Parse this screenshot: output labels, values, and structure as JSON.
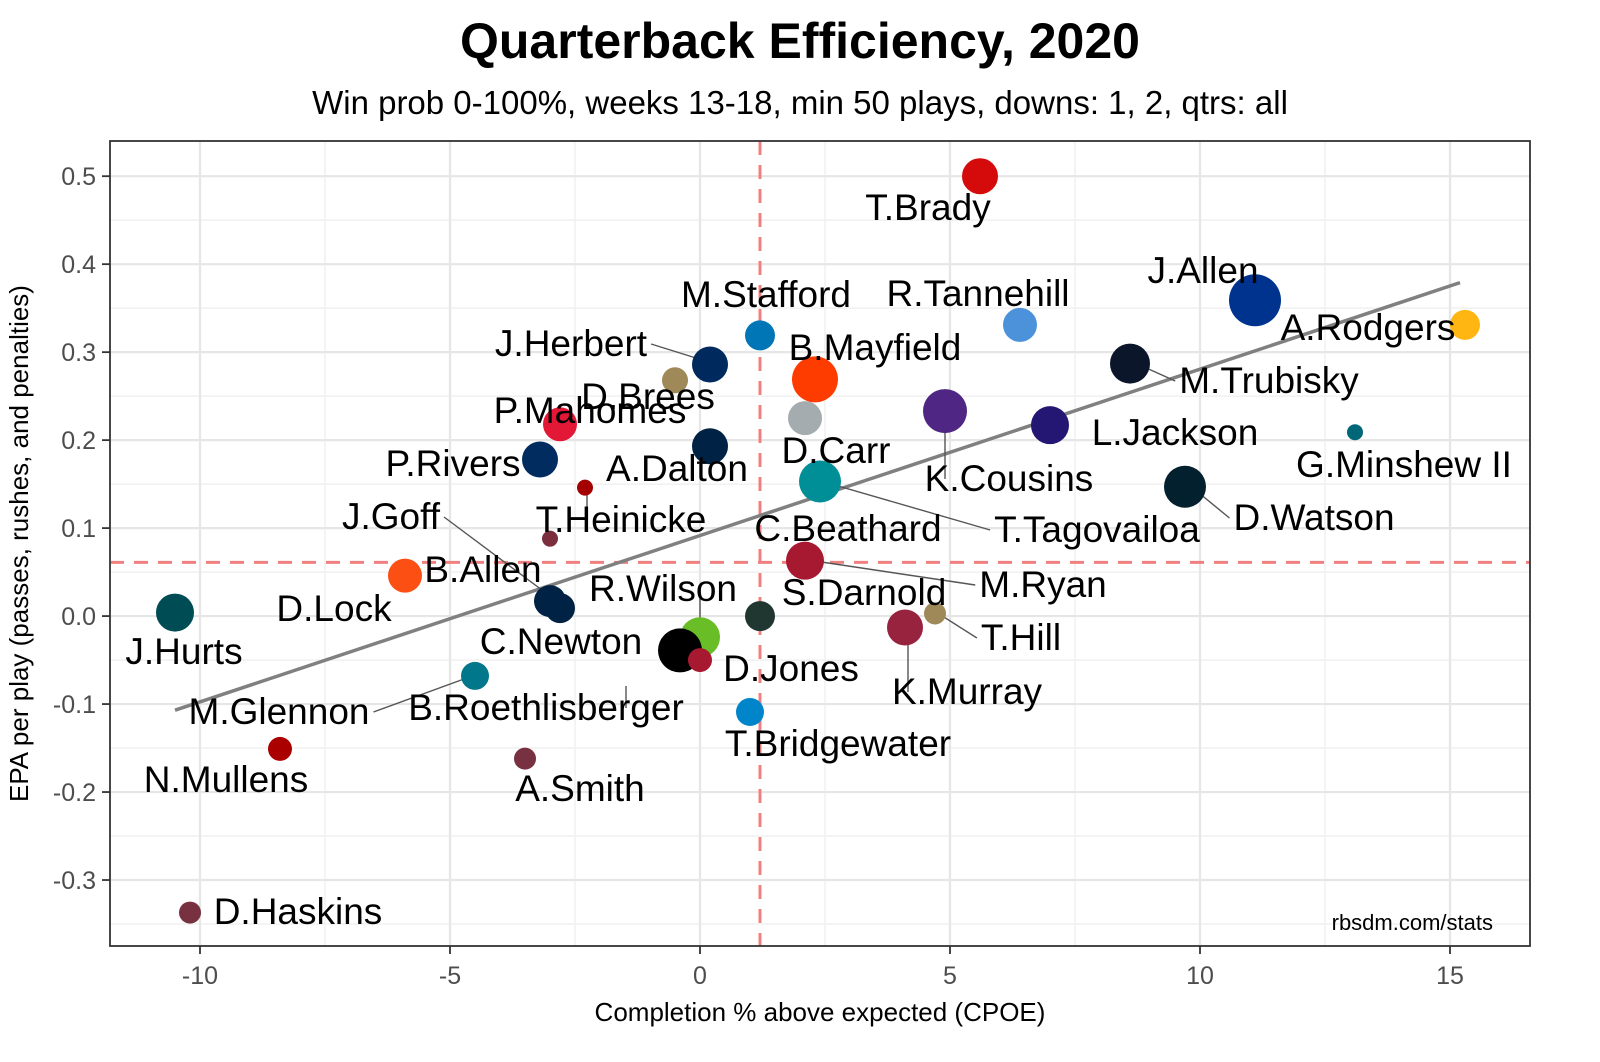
{
  "chart_data": {
    "type": "scatter",
    "title": "Quarterback Efficiency, 2020",
    "subtitle": "Win prob 0-100%, weeks 13-18, min 50 plays, downs: 1, 2, qtrs: all",
    "xlabel": "Completion % above expected (CPOE)",
    "ylabel": "EPA per play (passes, rushes, and penalties)",
    "caption": "rbsdm.com/stats",
    "xlim": [
      -11.8,
      16.6
    ],
    "ylim": [
      -0.375,
      0.54
    ],
    "x_ticks": [
      -10,
      -5,
      0,
      5,
      10,
      15
    ],
    "y_ticks": [
      -0.3,
      -0.2,
      -0.1,
      0.0,
      0.1,
      0.2,
      0.3,
      0.4,
      0.5
    ],
    "x_tick_labels": [
      "-10",
      "-5",
      "0",
      "5",
      "10",
      "15"
    ],
    "y_tick_labels": [
      "-0.3",
      "-0.2",
      "-0.1",
      "0.0",
      "0.1",
      "0.2",
      "0.3",
      "0.4",
      "0.5"
    ],
    "grid": true,
    "mean_lines": {
      "x": 1.2,
      "y": 0.061,
      "color": "#f08080"
    },
    "trend_line": {
      "x": [
        -10.5,
        15.2
      ],
      "y": [
        -0.107,
        0.379
      ],
      "color": "#808080"
    },
    "points": [
      {
        "name": "T.Brady",
        "x": 5.6,
        "y": 0.5,
        "size": 18,
        "color": "#d50a0a"
      },
      {
        "name": "J.Allen",
        "x": 11.1,
        "y": 0.359,
        "size": 26,
        "color": "#00338d"
      },
      {
        "name": "A.Rodgers",
        "x": 15.3,
        "y": 0.331,
        "size": 15,
        "color": "#ffb612"
      },
      {
        "name": "R.Tannehill",
        "x": 6.4,
        "y": 0.331,
        "size": 17,
        "color": "#4b92db"
      },
      {
        "name": "M.Stafford",
        "x": 1.2,
        "y": 0.319,
        "size": 15,
        "color": "#0076b6"
      },
      {
        "name": "J.Herbert",
        "x": 0.2,
        "y": 0.286,
        "size": 18,
        "color": "#002a5e"
      },
      {
        "name": "B.Mayfield",
        "x": 2.3,
        "y": 0.269,
        "size": 23,
        "color": "#ff3c00"
      },
      {
        "name": "M.Trubisky",
        "x": 8.6,
        "y": 0.287,
        "size": 20,
        "color": "#0b162a"
      },
      {
        "name": "D.Brees",
        "x": -0.5,
        "y": 0.268,
        "size": 13,
        "color": "#9f8958"
      },
      {
        "name": "D.Carr",
        "x": 2.1,
        "y": 0.225,
        "size": 17,
        "color": "#a5acaf"
      },
      {
        "name": "K.Cousins",
        "x": 4.9,
        "y": 0.233,
        "size": 22,
        "color": "#4f2683"
      },
      {
        "name": "L.Jackson",
        "x": 7.0,
        "y": 0.217,
        "size": 19,
        "color": "#241773"
      },
      {
        "name": "P.Mahomes",
        "x": -2.8,
        "y": 0.218,
        "size": 17,
        "color": "#e31837"
      },
      {
        "name": "A.Dalton",
        "x": 0.2,
        "y": 0.193,
        "size": 18,
        "color": "#002244"
      },
      {
        "name": "G.Minshew II",
        "x": 13.1,
        "y": 0.209,
        "size": 8,
        "color": "#006778"
      },
      {
        "name": "P.Rivers",
        "x": -3.2,
        "y": 0.178,
        "size": 18,
        "color": "#002c5f"
      },
      {
        "name": "T.Tagovailoa",
        "x": 2.4,
        "y": 0.153,
        "size": 21,
        "color": "#008e97"
      },
      {
        "name": "D.Watson",
        "x": 9.7,
        "y": 0.147,
        "size": 21,
        "color": "#03202f"
      },
      {
        "name": "T.Heinicke",
        "x": -2.3,
        "y": 0.146,
        "size": 8,
        "color": "#a50000"
      },
      {
        "name": "C.Beathard",
        "x": -3.0,
        "y": 0.088,
        "size": 8,
        "color": "#7a2e3e"
      },
      {
        "name": "M.Ryan",
        "x": 2.1,
        "y": 0.063,
        "size": 19,
        "color": "#a71930"
      },
      {
        "name": "J.Goff",
        "x": -3.0,
        "y": 0.017,
        "size": 16,
        "color": "#002244"
      },
      {
        "name": "B.Allen",
        "x": -2.8,
        "y": 0.009,
        "size": 15,
        "color": "#002244"
      },
      {
        "name": "D.Lock",
        "x": -5.9,
        "y": 0.046,
        "size": 17,
        "color": "#fb4f14"
      },
      {
        "name": "J.Hurts",
        "x": -10.5,
        "y": 0.004,
        "size": 19,
        "color": "#004c54"
      },
      {
        "name": "R.Wilson",
        "x": 0.0,
        "y": -0.024,
        "size": 20,
        "color": "#69be28"
      },
      {
        "name": "S.Darnold",
        "x": 1.2,
        "y": 0.0,
        "size": 15,
        "color": "#203731"
      },
      {
        "name": "T.Hill",
        "x": 4.7,
        "y": 0.003,
        "size": 11,
        "color": "#9f8958"
      },
      {
        "name": "K.Murray",
        "x": 4.1,
        "y": -0.013,
        "size": 18,
        "color": "#97233f"
      },
      {
        "name": "C.Newton",
        "x": -0.4,
        "y": -0.039,
        "size": 22,
        "color": "#000000"
      },
      {
        "name": "D.Jones",
        "x": 0.0,
        "y": -0.05,
        "size": 12,
        "color": "#a71930"
      },
      {
        "name": "B.Roethlisberger",
        "x": -4.5,
        "y": -0.068,
        "size": 14,
        "color": "#00778b"
      },
      {
        "name": "T.Bridgewater",
        "x": 1.0,
        "y": -0.109,
        "size": 14,
        "color": "#0085ca"
      },
      {
        "name": "N.Mullens",
        "x": -8.4,
        "y": -0.151,
        "size": 12,
        "color": "#aa0000"
      },
      {
        "name": "A.Smith",
        "x": -3.5,
        "y": -0.162,
        "size": 11,
        "color": "#773141"
      },
      {
        "name": "D.Haskins",
        "x": -10.2,
        "y": -0.337,
        "size": 11,
        "color": "#773141"
      },
      {
        "name": "M.Glennon",
        "x": -4.5,
        "y": -0.068,
        "size": 0,
        "color": "#000000"
      }
    ]
  }
}
